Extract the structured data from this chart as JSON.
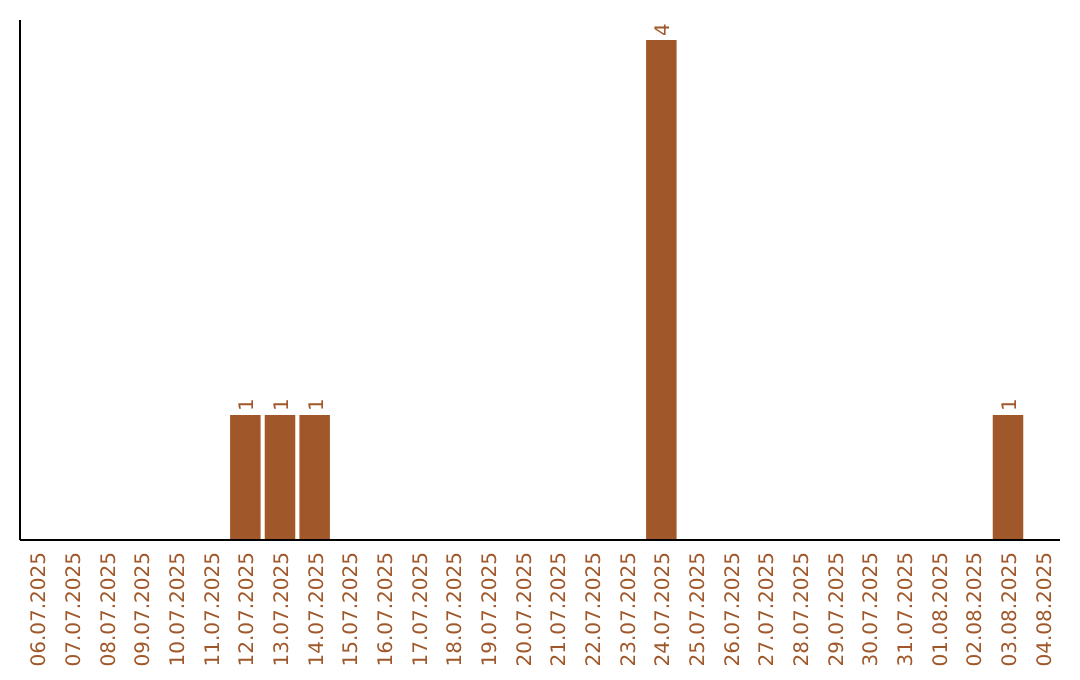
{
  "chart_data": {
    "type": "bar",
    "categories": [
      "06.07.2025",
      "07.07.2025",
      "08.07.2025",
      "09.07.2025",
      "10.07.2025",
      "11.07.2025",
      "12.07.2025",
      "13.07.2025",
      "14.07.2025",
      "15.07.2025",
      "16.07.2025",
      "17.07.2025",
      "18.07.2025",
      "19.07.2025",
      "20.07.2025",
      "21.07.2025",
      "22.07.2025",
      "23.07.2025",
      "24.07.2025",
      "25.07.2025",
      "26.07.2025",
      "27.07.2025",
      "28.07.2025",
      "29.07.2025",
      "30.07.2025",
      "31.07.2025",
      "01.08.2025",
      "02.08.2025",
      "03.08.2025",
      "04.08.2025"
    ],
    "values": [
      0,
      0,
      0,
      0,
      0,
      0,
      1,
      1,
      1,
      0,
      0,
      0,
      0,
      0,
      0,
      0,
      0,
      0,
      4,
      0,
      0,
      0,
      0,
      0,
      0,
      0,
      0,
      0,
      1,
      0
    ],
    "value_labels": [
      null,
      null,
      null,
      null,
      null,
      null,
      "1",
      "1",
      "1",
      null,
      null,
      null,
      null,
      null,
      null,
      null,
      null,
      null,
      "4",
      null,
      null,
      null,
      null,
      null,
      null,
      null,
      null,
      null,
      "1",
      null
    ],
    "color": "#a0582a",
    "tick_labels": "x"
  }
}
